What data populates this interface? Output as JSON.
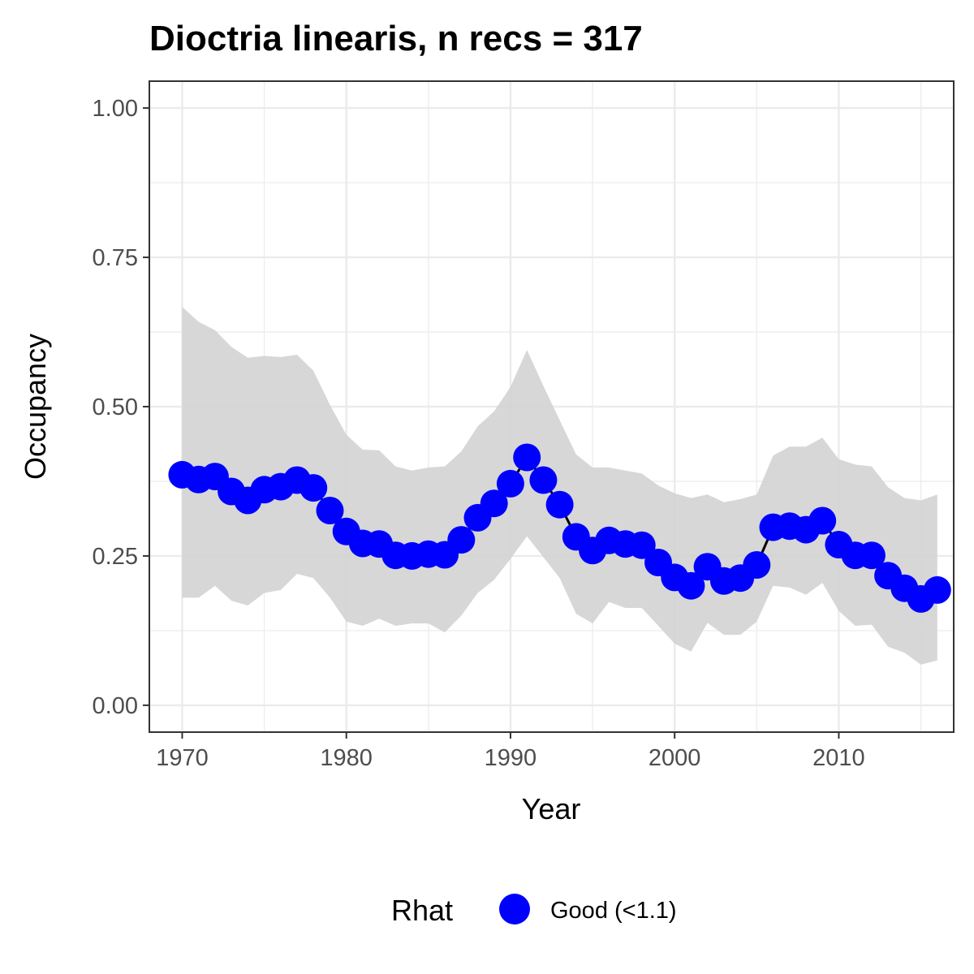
{
  "chart_data": {
    "type": "line",
    "title": "Dioctria linearis, n recs = 317",
    "xlabel": "Year",
    "ylabel": "Occupancy",
    "xlim": [
      1968,
      2017
    ],
    "ylim": [
      -0.045,
      1.045
    ],
    "x_ticks": [
      1970,
      1980,
      1990,
      2000,
      2010
    ],
    "x_tick_labels": [
      "1970",
      "1980",
      "1990",
      "2000",
      "2010"
    ],
    "y_ticks": [
      0,
      0.25,
      0.5,
      0.75,
      1.0
    ],
    "y_tick_labels": [
      "0.00",
      "0.25",
      "0.50",
      "0.75",
      "1.00"
    ],
    "grid": true,
    "legend": {
      "position": "bottom",
      "title": "Rhat",
      "entries": [
        {
          "label": "Good (<1.1)",
          "color": "#0000ff"
        }
      ]
    },
    "colors": {
      "point": "#0000ff",
      "line": "#000000",
      "ribbon": "#d3d3d3"
    },
    "x": [
      1970,
      1971,
      1972,
      1973,
      1974,
      1975,
      1976,
      1977,
      1978,
      1979,
      1980,
      1981,
      1982,
      1983,
      1984,
      1985,
      1986,
      1987,
      1988,
      1989,
      1990,
      1991,
      1992,
      1993,
      1994,
      1995,
      1996,
      1997,
      1998,
      1999,
      2000,
      2001,
      2002,
      2003,
      2004,
      2005,
      2006,
      2007,
      2008,
      2009,
      2010,
      2011,
      2012,
      2013,
      2014,
      2015,
      2016
    ],
    "series": [
      {
        "name": "Good (<1.1)",
        "values": [
          0.386,
          0.378,
          0.383,
          0.358,
          0.343,
          0.361,
          0.366,
          0.377,
          0.364,
          0.326,
          0.291,
          0.271,
          0.27,
          0.251,
          0.25,
          0.253,
          0.252,
          0.277,
          0.314,
          0.338,
          0.371,
          0.415,
          0.377,
          0.336,
          0.282,
          0.259,
          0.276,
          0.27,
          0.268,
          0.239,
          0.214,
          0.2,
          0.232,
          0.208,
          0.213,
          0.235,
          0.298,
          0.3,
          0.294,
          0.309,
          0.269,
          0.251,
          0.251,
          0.217,
          0.196,
          0.178,
          0.193
        ],
        "lower": [
          0.18,
          0.18,
          0.2,
          0.175,
          0.167,
          0.188,
          0.193,
          0.22,
          0.213,
          0.18,
          0.14,
          0.133,
          0.145,
          0.133,
          0.137,
          0.137,
          0.122,
          0.15,
          0.188,
          0.21,
          0.245,
          0.283,
          0.248,
          0.213,
          0.153,
          0.137,
          0.173,
          0.163,
          0.163,
          0.133,
          0.103,
          0.09,
          0.138,
          0.118,
          0.118,
          0.14,
          0.2,
          0.197,
          0.185,
          0.205,
          0.158,
          0.133,
          0.135,
          0.098,
          0.088,
          0.068,
          0.075
        ],
        "upper": [
          0.667,
          0.642,
          0.628,
          0.6,
          0.582,
          0.585,
          0.583,
          0.587,
          0.56,
          0.503,
          0.453,
          0.428,
          0.427,
          0.4,
          0.393,
          0.398,
          0.4,
          0.425,
          0.467,
          0.492,
          0.533,
          0.595,
          0.535,
          0.477,
          0.42,
          0.398,
          0.398,
          0.393,
          0.388,
          0.368,
          0.355,
          0.347,
          0.353,
          0.34,
          0.345,
          0.353,
          0.418,
          0.433,
          0.433,
          0.448,
          0.412,
          0.403,
          0.4,
          0.365,
          0.347,
          0.343,
          0.353
        ]
      }
    ]
  }
}
